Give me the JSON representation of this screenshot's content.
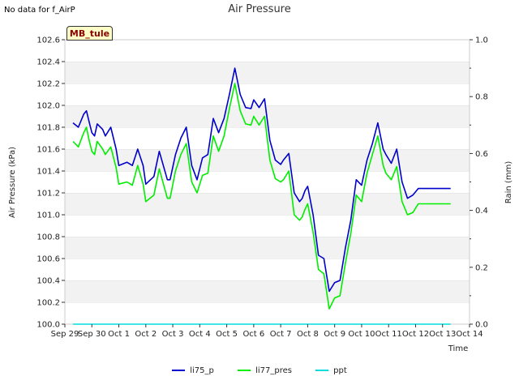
{
  "header": {
    "nodata": "No data for f_AirP"
  },
  "badge": {
    "label": "MB_tule"
  },
  "colors": {
    "li75_p": "#0000cc",
    "li77_pres": "#00ee00",
    "ppt": "#00dddd"
  },
  "chart_data": {
    "type": "line",
    "title": "Air Pressure",
    "xlabel": "Time",
    "ylabel": "Air Pressure (kPa)",
    "y2label": "Rain (mm)",
    "x_tick_labels": [
      "Sep 29",
      "Sep 30",
      "Oct 1",
      "Oct 2",
      "Oct 3",
      "Oct 4",
      "Oct 5",
      "Oct 6",
      "Oct 7",
      "Oct 8",
      "Oct 9",
      "Oct 10",
      "Oct 11",
      "Oct 12",
      "Oct 13",
      "Oct 14"
    ],
    "y_ticks": [
      "100.0",
      "100.2",
      "100.4",
      "100.6",
      "100.8",
      "101.0",
      "101.2",
      "101.4",
      "101.6",
      "101.8",
      "102.0",
      "102.2",
      "102.4",
      "102.6"
    ],
    "y2_ticks": [
      "0.0",
      "0.2",
      "0.4",
      "0.6",
      "0.8",
      "1.0"
    ],
    "ylim": [
      100.0,
      102.6
    ],
    "y2lim": [
      0.0,
      1.0
    ],
    "xlim_days": [
      0,
      15
    ],
    "grid": "horizontal bands",
    "legend_position": "bottom",
    "series": [
      {
        "name": "li75_p",
        "x": [
          0.3,
          0.5,
          0.7,
          0.8,
          0.9,
          1.0,
          1.1,
          1.2,
          1.4,
          1.5,
          1.7,
          1.9,
          2.0,
          2.3,
          2.5,
          2.7,
          2.9,
          3.0,
          3.3,
          3.5,
          3.8,
          3.9,
          4.1,
          4.3,
          4.5,
          4.7,
          4.9,
          5.1,
          5.3,
          5.5,
          5.7,
          5.9,
          6.1,
          6.3,
          6.5,
          6.7,
          6.9,
          7.0,
          7.2,
          7.4,
          7.6,
          7.8,
          8.0,
          8.1,
          8.3,
          8.5,
          8.7,
          8.8,
          8.9,
          9.0,
          9.2,
          9.4,
          9.6,
          9.8,
          10.0,
          10.2,
          10.4,
          10.6,
          10.8,
          11.0,
          11.2,
          11.4,
          11.6,
          11.8,
          11.9,
          12.1,
          12.3,
          12.5,
          12.7,
          12.9,
          13.1,
          13.3,
          13.5,
          13.7,
          13.9,
          14.1,
          14.3
        ],
        "values": [
          101.84,
          101.8,
          101.92,
          101.95,
          101.85,
          101.75,
          101.72,
          101.83,
          101.78,
          101.72,
          101.8,
          101.6,
          101.45,
          101.48,
          101.45,
          101.6,
          101.45,
          101.28,
          101.35,
          101.58,
          101.32,
          101.32,
          101.55,
          101.7,
          101.8,
          101.45,
          101.32,
          101.52,
          101.55,
          101.88,
          101.75,
          101.88,
          102.1,
          102.34,
          102.1,
          101.98,
          101.97,
          102.05,
          101.98,
          102.06,
          101.68,
          101.5,
          101.46,
          101.5,
          101.56,
          101.2,
          101.12,
          101.15,
          101.22,
          101.26,
          101.0,
          100.63,
          100.6,
          100.3,
          100.38,
          100.4,
          100.7,
          100.95,
          101.32,
          101.27,
          101.5,
          101.65,
          101.84,
          101.6,
          101.55,
          101.47,
          101.6,
          101.3,
          101.15,
          101.18,
          101.24,
          101.24,
          101.24,
          101.24,
          101.24,
          101.24,
          101.24
        ]
      },
      {
        "name": "li77_pres",
        "x": [
          0.3,
          0.5,
          0.7,
          0.8,
          0.9,
          1.0,
          1.1,
          1.2,
          1.4,
          1.5,
          1.7,
          1.9,
          2.0,
          2.3,
          2.5,
          2.7,
          2.9,
          3.0,
          3.3,
          3.5,
          3.8,
          3.9,
          4.1,
          4.3,
          4.5,
          4.7,
          4.9,
          5.1,
          5.3,
          5.5,
          5.7,
          5.9,
          6.1,
          6.3,
          6.5,
          6.7,
          6.9,
          7.0,
          7.2,
          7.4,
          7.6,
          7.8,
          8.0,
          8.1,
          8.3,
          8.5,
          8.7,
          8.8,
          8.9,
          9.0,
          9.2,
          9.4,
          9.6,
          9.8,
          10.0,
          10.2,
          10.4,
          10.6,
          10.8,
          11.0,
          11.2,
          11.4,
          11.6,
          11.8,
          11.9,
          12.1,
          12.3,
          12.5,
          12.7,
          12.9,
          13.1,
          13.3,
          13.5,
          13.7,
          13.9,
          14.1,
          14.3
        ],
        "values": [
          101.67,
          101.62,
          101.75,
          101.8,
          101.68,
          101.58,
          101.55,
          101.67,
          101.6,
          101.55,
          101.62,
          101.43,
          101.28,
          101.3,
          101.27,
          101.45,
          101.28,
          101.12,
          101.18,
          101.42,
          101.15,
          101.15,
          101.4,
          101.55,
          101.65,
          101.3,
          101.2,
          101.36,
          101.38,
          101.72,
          101.58,
          101.72,
          101.97,
          102.2,
          101.95,
          101.83,
          101.82,
          101.9,
          101.82,
          101.9,
          101.5,
          101.33,
          101.3,
          101.32,
          101.4,
          101.0,
          100.95,
          100.98,
          101.05,
          101.1,
          100.84,
          100.5,
          100.46,
          100.14,
          100.24,
          100.26,
          100.56,
          100.83,
          101.18,
          101.12,
          101.38,
          101.55,
          101.72,
          101.45,
          101.38,
          101.32,
          101.44,
          101.12,
          101.0,
          101.02,
          101.1,
          101.1,
          101.1,
          101.1,
          101.1,
          101.1,
          101.1
        ]
      },
      {
        "name": "ppt",
        "axis": "y2",
        "x": [
          0.3,
          14.3
        ],
        "values": [
          0.0,
          0.0
        ]
      }
    ]
  }
}
